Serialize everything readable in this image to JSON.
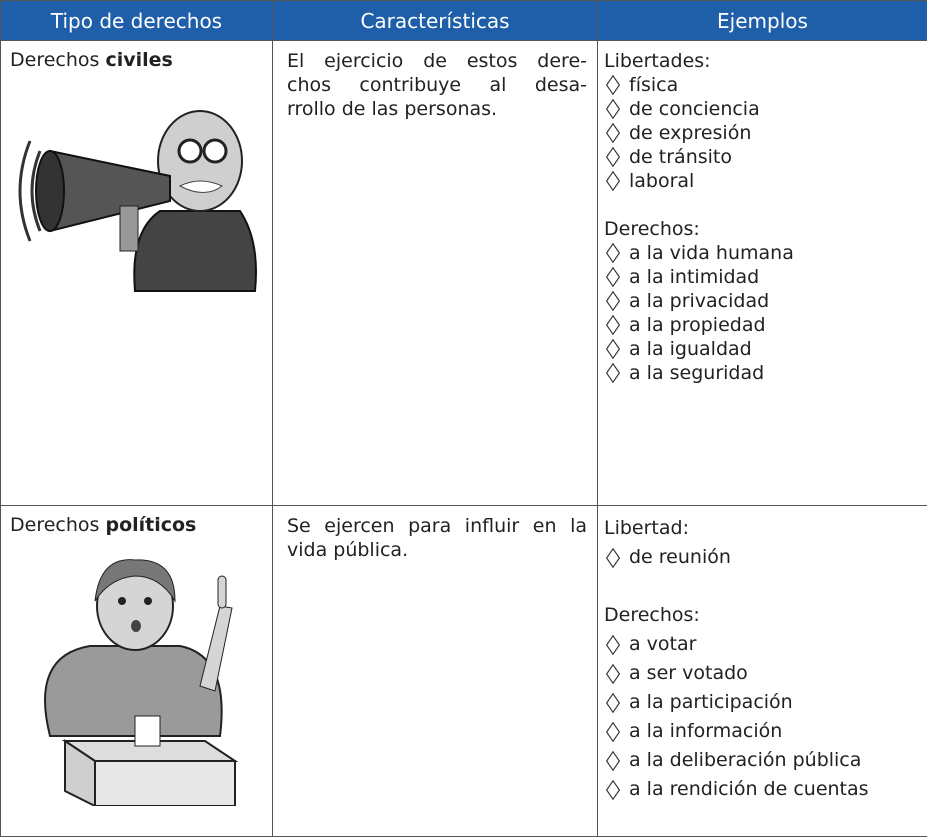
{
  "table": {
    "headers": [
      "Tipo de derechos",
      "Características",
      "Ejemplos"
    ],
    "rows": [
      {
        "type_prefix": "Derechos",
        "type_emphasis": "civiles",
        "characteristics": [
          "El ejercicio de estos dere-",
          "chos contribuye al desa-",
          "rrollo de las personas."
        ],
        "examples": [
          {
            "heading": "Libertades:",
            "items": [
              "física",
              "de conciencia",
              "de expresión",
              "de tránsito",
              "laboral"
            ]
          },
          {
            "heading": "Derechos:",
            "items": [
              "a la vida humana",
              "a la intimidad",
              "a la privacidad",
              "a la propiedad",
              "a la igualdad",
              "a la seguridad"
            ]
          }
        ]
      },
      {
        "type_prefix": "Derechos",
        "type_emphasis": "políticos",
        "characteristics": [
          "Se ejercen para influir en la",
          "vida pública."
        ],
        "examples": [
          {
            "heading": "Libertad:",
            "items": [
              "de reunión"
            ]
          },
          {
            "heading": "Derechos:",
            "items": [
              "a votar",
              "a ser votado",
              "a la participación",
              "a la información",
              "a la deliberación pública",
              "a la rendición de cuentas"
            ]
          }
        ]
      }
    ]
  }
}
